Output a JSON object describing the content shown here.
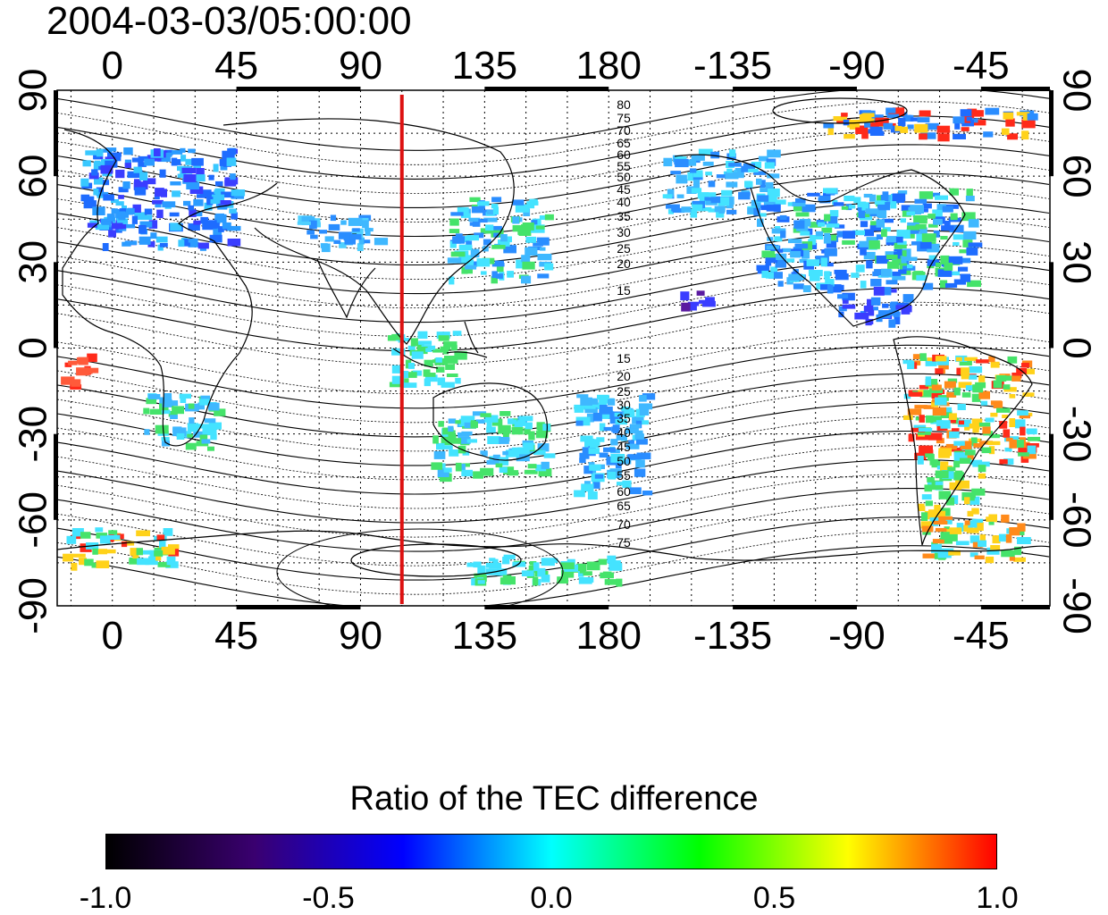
{
  "title": "2004-03-03/05:00:00",
  "map": {
    "top_ticks": [
      "0",
      "45",
      "90",
      "135",
      "180",
      "-135",
      "-90",
      "-45"
    ],
    "bottom_ticks": [
      "0",
      "45",
      "90",
      "135",
      "180",
      "-135",
      "-90",
      "-45"
    ],
    "left_ticks": [
      "90",
      "60",
      "30",
      "0",
      "-30",
      "-60",
      "-90"
    ],
    "right_ticks": [
      "90",
      "60",
      "30",
      "0",
      "-30",
      "-60",
      "-90"
    ],
    "north_contour_labels": [
      "80",
      "75",
      "70",
      "65",
      "60",
      "55",
      "50",
      "45",
      "40",
      "35",
      "30",
      "25",
      "20",
      "15"
    ],
    "south_contour_labels": [
      "15",
      "20",
      "25",
      "30",
      "35",
      "40",
      "45",
      "50",
      "55",
      "60",
      "65",
      "70",
      "75"
    ],
    "red_line_longitude": 105,
    "colors": {
      "red_line": "#dd1111",
      "frame": "#000000"
    }
  },
  "colorbar": {
    "title": "Ratio of the TEC difference",
    "tick_labels": [
      "-1.0",
      "-0.5",
      "0.0",
      "0.5",
      "1.0"
    ],
    "stops": [
      "#000000",
      "#3a0070",
      "#0000ff",
      "#00ffff",
      "#00ff00",
      "#ffff00",
      "#ff0000"
    ]
  }
}
